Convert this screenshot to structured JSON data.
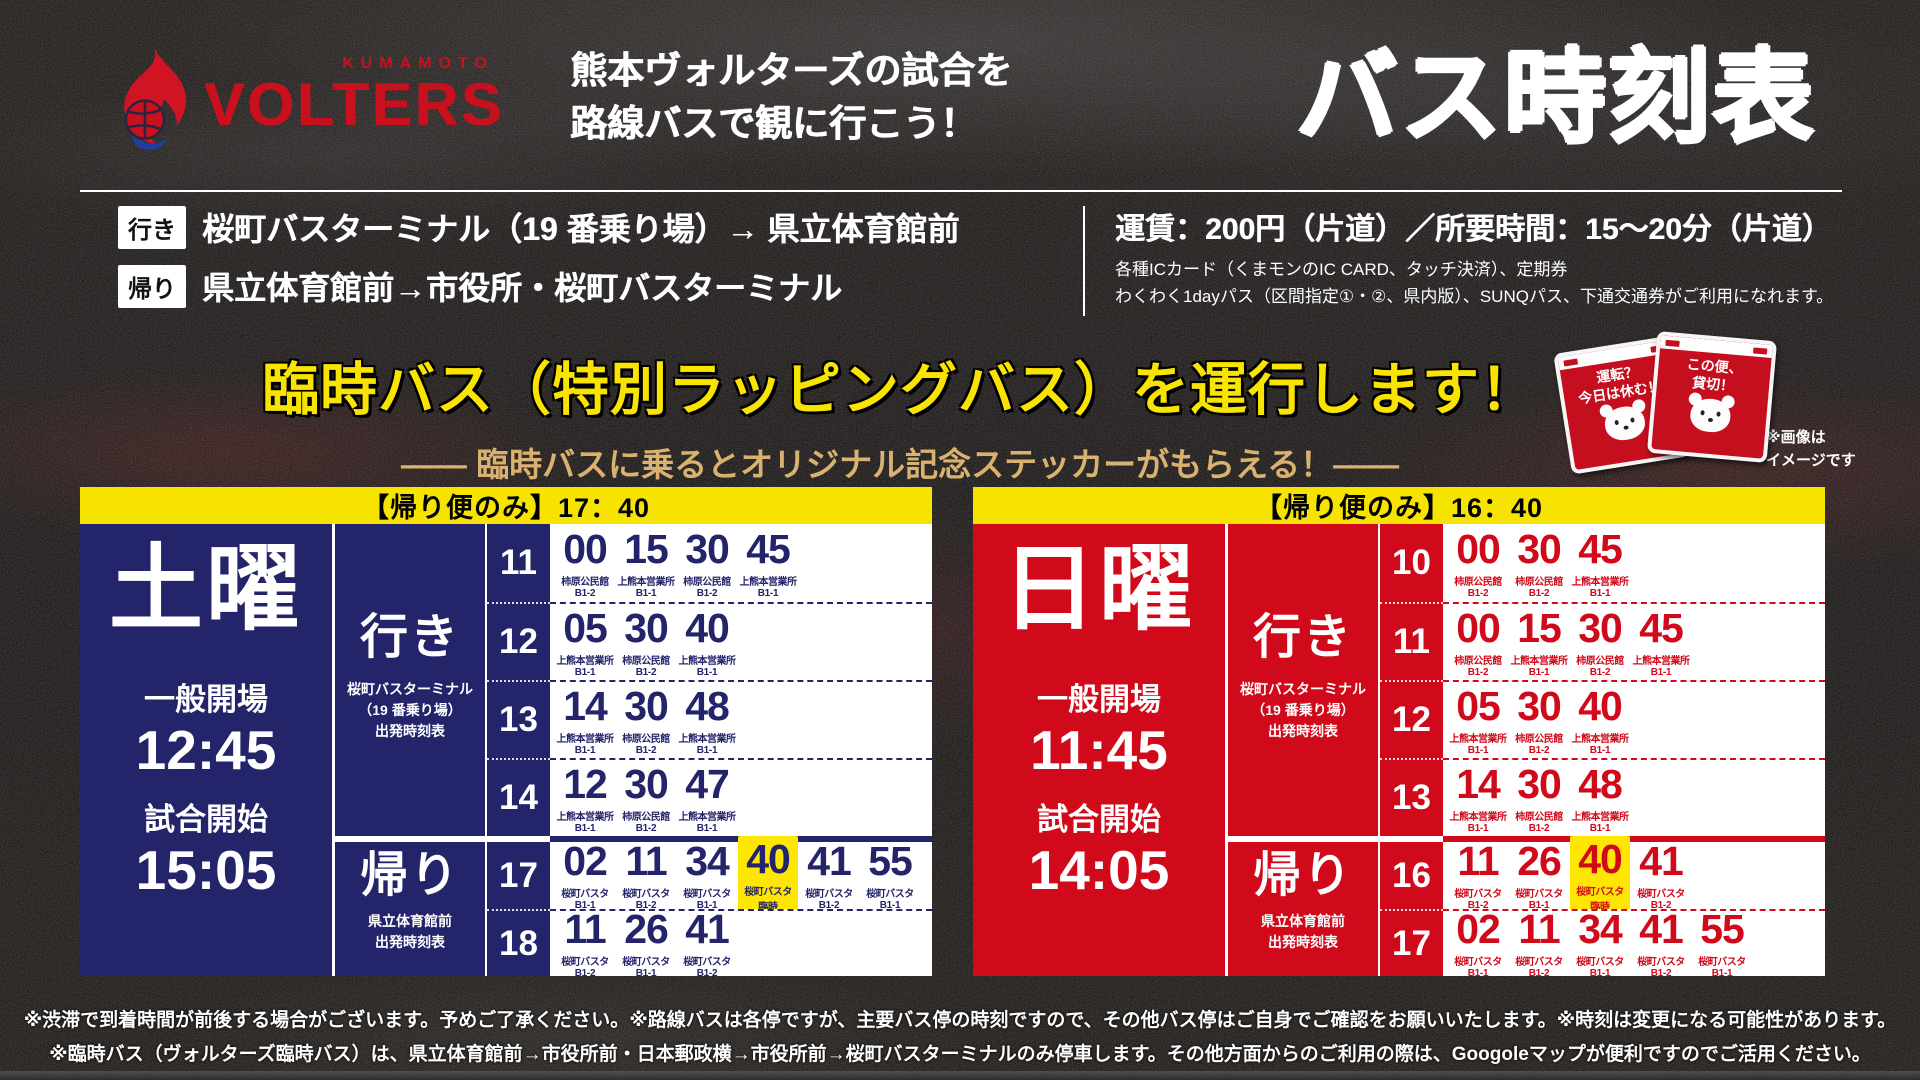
{
  "logo": {
    "kumamoto": "KUMAMOTO",
    "volters": "VOLTERS"
  },
  "header": {
    "promo_line1": "熊本ヴォルターズの試合を",
    "promo_line2": "路線バスで観に行こう！",
    "title_big": "バス時刻表"
  },
  "routes": {
    "outbound_label": "行き",
    "outbound_text": "桜町バスターミナル（19 番乗り場）→ 県立体育館前",
    "return_label": "帰り",
    "return_text": "県立体育館前→市役所・桜町バスターミナル"
  },
  "fare": {
    "main": "運賃：200円（片道）／所要時間：15〜20分（片道）",
    "note1": "各種ICカード（くまモンのIC CARD、タッチ決済）、定期券",
    "note2": "わくわく1dayパス（区間指定①・②、県内版）、SUNQパス、下通交通券がご利用になれます。"
  },
  "banner": {
    "headline": "臨時バス（特別ラッピングバス）を運行します！",
    "subline": "―― 臨時バスに乗るとオリジナル記念ステッカーがもらえる！――",
    "note_line1": "※画像は",
    "note_line2": "イメージです"
  },
  "stickers": {
    "left": {
      "line1": "運転？",
      "line2": "今日は休む！"
    },
    "right": {
      "line1": "この便、",
      "line2": "貸切！"
    }
  },
  "colors": {
    "navy": "#23246a",
    "red": "#d00a1b",
    "yellow_bar": "#f6e400",
    "highlight": "#ffe600",
    "gold": "#d9b26f"
  },
  "panels": [
    {
      "accent": "#23246a",
      "header": "【帰り便のみ】17：40",
      "day": "土曜",
      "open_label": "一般開場",
      "open_time": "12:45",
      "start_label": "試合開始",
      "start_time": "15:05",
      "outbound": {
        "label": "行き",
        "note_lines": [
          "桜町バスターミナル",
          "（19 番乗り場）",
          "出発時刻表"
        ],
        "rows": [
          {
            "hour": "11",
            "cells": [
              {
                "min": "00",
                "dest": "柿原公民館",
                "plat": "B1-2"
              },
              {
                "min": "15",
                "dest": "上熊本営業所",
                "plat": "B1-1"
              },
              {
                "min": "30",
                "dest": "柿原公民館",
                "plat": "B1-2"
              },
              {
                "min": "45",
                "dest": "上熊本営業所",
                "plat": "B1-1"
              }
            ]
          },
          {
            "hour": "12",
            "cells": [
              {
                "min": "05",
                "dest": "上熊本営業所",
                "plat": "B1-1"
              },
              {
                "min": "30",
                "dest": "柿原公民館",
                "plat": "B1-2"
              },
              {
                "min": "40",
                "dest": "上熊本営業所",
                "plat": "B1-1"
              }
            ]
          },
          {
            "hour": "13",
            "cells": [
              {
                "min": "14",
                "dest": "上熊本営業所",
                "plat": "B1-1"
              },
              {
                "min": "30",
                "dest": "柿原公民館",
                "plat": "B1-2"
              },
              {
                "min": "48",
                "dest": "上熊本営業所",
                "plat": "B1-1"
              }
            ]
          },
          {
            "hour": "14",
            "cells": [
              {
                "min": "12",
                "dest": "上熊本営業所",
                "plat": "B1-1"
              },
              {
                "min": "30",
                "dest": "柿原公民館",
                "plat": "B1-2"
              },
              {
                "min": "47",
                "dest": "上熊本営業所",
                "plat": "B1-1"
              }
            ]
          }
        ]
      },
      "homebound": {
        "label": "帰り",
        "note_lines": [
          "県立体育館前",
          "出発時刻表"
        ],
        "rows": [
          {
            "hour": "17",
            "cells": [
              {
                "min": "02",
                "dest": "桜町バスタ",
                "plat": "B1-1"
              },
              {
                "min": "11",
                "dest": "桜町バスタ",
                "plat": "B1-2"
              },
              {
                "min": "34",
                "dest": "桜町バスタ",
                "plat": "B1-1"
              },
              {
                "min": "40",
                "dest": "桜町バスタ",
                "plat": "臨時",
                "highlight": true
              },
              {
                "min": "41",
                "dest": "桜町バスタ",
                "plat": "B1-2"
              },
              {
                "min": "55",
                "dest": "桜町バスタ",
                "plat": "B1-1"
              }
            ]
          },
          {
            "hour": "18",
            "cells": [
              {
                "min": "11",
                "dest": "桜町バスタ",
                "plat": "B1-2"
              },
              {
                "min": "26",
                "dest": "桜町バスタ",
                "plat": "B1-1"
              },
              {
                "min": "41",
                "dest": "桜町バスタ",
                "plat": "B1-2"
              }
            ]
          }
        ]
      }
    },
    {
      "accent": "#d00a1b",
      "header": "【帰り便のみ】16：40",
      "day": "日曜",
      "open_label": "一般開場",
      "open_time": "11:45",
      "start_label": "試合開始",
      "start_time": "14:05",
      "outbound": {
        "label": "行き",
        "note_lines": [
          "桜町バスターミナル",
          "（19 番乗り場）",
          "出発時刻表"
        ],
        "rows": [
          {
            "hour": "10",
            "cells": [
              {
                "min": "00",
                "dest": "柿原公民館",
                "plat": "B1-2"
              },
              {
                "min": "30",
                "dest": "柿原公民館",
                "plat": "B1-2"
              },
              {
                "min": "45",
                "dest": "上熊本営業所",
                "plat": "B1-1"
              }
            ]
          },
          {
            "hour": "11",
            "cells": [
              {
                "min": "00",
                "dest": "柿原公民館",
                "plat": "B1-2"
              },
              {
                "min": "15",
                "dest": "上熊本営業所",
                "plat": "B1-1"
              },
              {
                "min": "30",
                "dest": "柿原公民館",
                "plat": "B1-2"
              },
              {
                "min": "45",
                "dest": "上熊本営業所",
                "plat": "B1-1"
              }
            ]
          },
          {
            "hour": "12",
            "cells": [
              {
                "min": "05",
                "dest": "上熊本営業所",
                "plat": "B1-1"
              },
              {
                "min": "30",
                "dest": "柿原公民館",
                "plat": "B1-2"
              },
              {
                "min": "40",
                "dest": "上熊本営業所",
                "plat": "B1-1"
              }
            ]
          },
          {
            "hour": "13",
            "cells": [
              {
                "min": "14",
                "dest": "上熊本営業所",
                "plat": "B1-1"
              },
              {
                "min": "30",
                "dest": "柿原公民館",
                "plat": "B1-2"
              },
              {
                "min": "48",
                "dest": "上熊本営業所",
                "plat": "B1-1"
              }
            ]
          }
        ]
      },
      "homebound": {
        "label": "帰り",
        "note_lines": [
          "県立体育館前",
          "出発時刻表"
        ],
        "rows": [
          {
            "hour": "16",
            "cells": [
              {
                "min": "11",
                "dest": "桜町バスタ",
                "plat": "B1-2"
              },
              {
                "min": "26",
                "dest": "桜町バスタ",
                "plat": "B1-1"
              },
              {
                "min": "40",
                "dest": "桜町バスタ",
                "plat": "臨時",
                "highlight": true
              },
              {
                "min": "41",
                "dest": "桜町バスタ",
                "plat": "B1-2"
              }
            ]
          },
          {
            "hour": "17",
            "cells": [
              {
                "min": "02",
                "dest": "桜町バスタ",
                "plat": "B1-1"
              },
              {
                "min": "11",
                "dest": "桜町バスタ",
                "plat": "B1-2"
              },
              {
                "min": "34",
                "dest": "桜町バスタ",
                "plat": "B1-1"
              },
              {
                "min": "41",
                "dest": "桜町バスタ",
                "plat": "B1-2"
              },
              {
                "min": "55",
                "dest": "桜町バスタ",
                "plat": "B1-1"
              }
            ]
          }
        ]
      }
    }
  ],
  "footer": {
    "line1": "※渋滞で到着時間が前後する場合がございます。予めご了承ください。※路線バスは各停ですが、主要バス停の時刻ですので、その他バス停はご自身でご確認をお願いいたします。※時刻は変更になる可能性があります。",
    "line2": "※臨時バス（ヴォルターズ臨時バス）は、県立体育館前→市役所前・日本郵政横→市役所前→桜町バスターミナルのみ停車します。その他方面からのご利用の際は、Googoleマップが便利ですのでご活用ください。"
  }
}
